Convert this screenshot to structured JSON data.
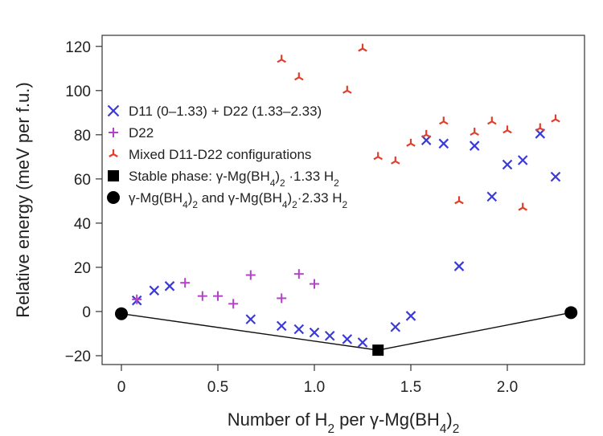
{
  "chart_data": {
    "type": "scatter",
    "xlabel": {
      "pre": "Number of H",
      "sub1": "2",
      "mid": " per γ-Mg(BH",
      "sub2": "4",
      "post": ")",
      "sub3": "2"
    },
    "ylabel": "Relative energy (meV per f.u.)",
    "xlim": [
      -0.1,
      2.4
    ],
    "ylim": [
      -24,
      125
    ],
    "xticks": [
      0,
      0.5,
      1.0,
      1.5,
      2.0
    ],
    "xtick_labels": [
      "0",
      "0.5",
      "1.0",
      "1.5",
      "2.0"
    ],
    "yticks": [
      -20,
      0,
      20,
      40,
      60,
      80,
      100,
      120
    ],
    "ytick_labels": [
      "−20",
      "0",
      "20",
      "40",
      "60",
      "80",
      "100",
      "120"
    ],
    "legend_position": "upper-left",
    "legend": [
      {
        "marker": "x-bold",
        "pre": "D11 (0–1.33) + D22 (1.33–2.33)"
      },
      {
        "marker": "plus",
        "pre": "D22"
      },
      {
        "marker": "tri",
        "pre": "Mixed D11-D22 configurations"
      },
      {
        "marker": "square",
        "pre": "Stable phase: γ-Mg(BH",
        "sub1": "4",
        "mid": ")",
        "sub2": "2",
        "post": " ·1.33 H",
        "sub3": "2"
      },
      {
        "marker": "circle",
        "pre": "γ-Mg(BH",
        "sub1": "4",
        "mid": ")",
        "sub2": "2",
        "post": " and γ-Mg(BH",
        "sub3": "4",
        "post2": ")",
        "sub4": "2",
        "post3": "·2.33 H",
        "sub5": "2"
      }
    ],
    "series": [
      {
        "key": "d11_d22",
        "marker": "x",
        "color": "#3a3ad6",
        "points": [
          [
            0.08,
            5
          ],
          [
            0.17,
            9.5
          ],
          [
            0.25,
            11.5
          ],
          [
            0.67,
            -3.5
          ],
          [
            0.83,
            -6.5
          ],
          [
            0.92,
            -8
          ],
          [
            1.0,
            -9.5
          ],
          [
            1.08,
            -11
          ],
          [
            1.17,
            -12.5
          ],
          [
            1.25,
            -14
          ],
          [
            1.42,
            -7
          ],
          [
            1.5,
            -2
          ],
          [
            1.58,
            77.5
          ],
          [
            1.67,
            76
          ],
          [
            1.75,
            20.5
          ],
          [
            1.83,
            75
          ],
          [
            1.92,
            52
          ],
          [
            2.0,
            66.5
          ],
          [
            2.08,
            68.5
          ],
          [
            2.17,
            80.5
          ],
          [
            2.25,
            61
          ]
        ]
      },
      {
        "key": "d22",
        "marker": "plus",
        "color": "#b342c8",
        "points": [
          [
            0.08,
            5.5
          ],
          [
            0.33,
            13
          ],
          [
            0.42,
            7
          ],
          [
            0.5,
            7
          ],
          [
            0.58,
            3.5
          ],
          [
            0.67,
            16.5
          ],
          [
            0.83,
            6
          ],
          [
            0.92,
            17
          ],
          [
            1.0,
            12.5
          ]
        ]
      },
      {
        "key": "mixed",
        "marker": "tri",
        "color": "#e03e2a",
        "points": [
          [
            0.83,
            114
          ],
          [
            0.92,
            106
          ],
          [
            1.17,
            100
          ],
          [
            1.25,
            119
          ],
          [
            1.33,
            70
          ],
          [
            1.42,
            68
          ],
          [
            1.5,
            76
          ],
          [
            1.58,
            80
          ],
          [
            1.67,
            86
          ],
          [
            1.75,
            50
          ],
          [
            1.83,
            81
          ],
          [
            1.92,
            86
          ],
          [
            2.0,
            82
          ],
          [
            2.08,
            47
          ],
          [
            2.17,
            83
          ],
          [
            2.25,
            87
          ]
        ]
      },
      {
        "key": "stable",
        "marker": "square",
        "color": "#000000",
        "points": [
          [
            1.33,
            -17.5
          ]
        ]
      },
      {
        "key": "endpoints",
        "marker": "circle",
        "color": "#000000",
        "points": [
          [
            0,
            -1
          ],
          [
            2.33,
            -0.5
          ]
        ]
      }
    ],
    "hull_line": [
      [
        0,
        -1
      ],
      [
        1.33,
        -17.5
      ],
      [
        2.33,
        -0.5
      ]
    ]
  }
}
